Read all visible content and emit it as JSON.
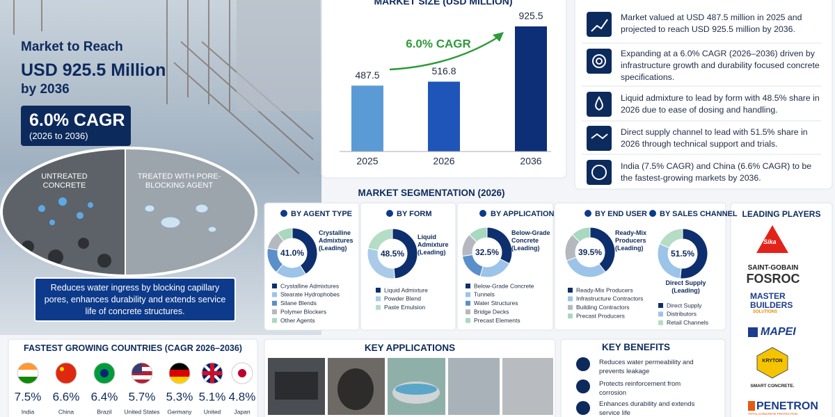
{
  "hero": {
    "heading": "Market to Reach",
    "value": "USD 925.5 Million",
    "year": "by 2036",
    "cagr": "6.0% CAGR",
    "cagr_period": "(2026 to 2036)",
    "untreated": "UNTREATED CONCRETE",
    "treated": "TREATED WITH PORE-BLOCKING AGENT",
    "caption": "Reduces water ingress by blocking capillary pores, enhances durability and extends service life of concrete structures."
  },
  "chart_data": [
    {
      "type": "bar",
      "title": "MARKET SIZE (USD MILLION)",
      "categories": [
        "2025",
        "2026",
        "2036"
      ],
      "values": [
        487.5,
        516.8,
        925.5
      ],
      "colors": [
        "#5b9bd5",
        "#1f55b8",
        "#0d2f78"
      ],
      "annotation": "6.0% CAGR"
    },
    {
      "type": "donut",
      "title": "BY AGENT TYPE",
      "categories": [
        "Crystalline Admixtures",
        "Stearate Hydrophobes",
        "Silane Blends",
        "Polymer Blockers",
        "Other Agents"
      ],
      "values": [
        41.0,
        20,
        17,
        12,
        10
      ],
      "value_labels": [
        "41.0%",
        null,
        null,
        null,
        null
      ],
      "colors": [
        "#0d2f6e",
        "#9cc3e8",
        "#5b8fc9",
        "#b5b8be",
        "#a8d8c0"
      ],
      "leading_label": "Crystalline Admixtures (Leading)"
    },
    {
      "type": "donut",
      "title": "BY FORM",
      "categories": [
        "Liquid Admixture",
        "Powder Blend",
        "Paste Emulsion"
      ],
      "values": [
        48.5,
        30,
        21.5
      ],
      "value_labels": [
        "48.5%",
        null,
        null
      ],
      "colors": [
        "#0d2f6e",
        "#a9cbe8",
        "#b5dcc5"
      ],
      "leading_label": "Liquid Admixture (Leading)"
    },
    {
      "type": "donut",
      "title": "BY APPLICATION",
      "categories": [
        "Below-Grade Concrete",
        "Tunnels",
        "Water Structures",
        "Bridge Decks",
        "Precast Elements"
      ],
      "values": [
        32.5,
        22,
        18,
        15,
        12.5
      ],
      "value_labels": [
        "32.5%",
        null,
        null,
        null,
        null
      ],
      "colors": [
        "#0d2f6e",
        "#9cc3e8",
        "#5b8fc9",
        "#b5b8be",
        "#a8d8c0"
      ],
      "leading_label": "Below-Grade Concrete (Leading)"
    },
    {
      "type": "donut",
      "title": "BY END USER",
      "categories": [
        "Ready-Mix Producers",
        "Infrastructure Contractors",
        "Building Contractors",
        "Precast Producers"
      ],
      "values": [
        39.5,
        30,
        18,
        12.5
      ],
      "value_labels": [
        "39.5%",
        null,
        null,
        null
      ],
      "colors": [
        "#0d2f6e",
        "#9cc3e8",
        "#b5b8be",
        "#a8d8c0"
      ],
      "leading_label": "Ready-Mix Producers (Leading)"
    },
    {
      "type": "donut",
      "title": "BY SALES CHANNEL",
      "categories": [
        "Direct Supply",
        "Distributors",
        "Retail Channels"
      ],
      "values": [
        51.5,
        30,
        18.5
      ],
      "value_labels": [
        "51.5%",
        null,
        null
      ],
      "colors": [
        "#0d2f6e",
        "#9cc3e8",
        "#b5dcc5"
      ],
      "leading_label": "Direct Supply (Leading)"
    }
  ],
  "highlights": [
    "Market valued at USD 487.5 million in 2025 and projected to reach USD 925.5 million by 2036.",
    "Expanding at a 6.0% CAGR (2026–2036) driven by infrastructure growth and durability focused concrete specifications.",
    "Liquid admixture to lead by form with 48.5% share in 2026 due to ease of dosing and handling.",
    "Direct supply channel to lead with 51.5% share in 2026 through technical support and trials.",
    "India (7.5% CAGR) and China (6.6% CAGR) to be the fastest-growing markets by 2036."
  ],
  "segmentation_title": "MARKET SEGMENTATION (2026)",
  "leading_players": {
    "title": "LEADING PLAYERS",
    "logos": [
      "Sika",
      "SAINT-GOBAIN",
      "FOSROC",
      "MASTER BUILDERS",
      "SOLUTIONS",
      "MAPEI",
      "KRYTON",
      "SMART CONCRETE.",
      "PENETRON",
      "TOTAL CONCRETE PROTECTION"
    ]
  },
  "countries": {
    "title": "FASTEST GROWING COUNTRIES (CAGR 2026–2036)",
    "items": [
      {
        "cagr": "7.5%",
        "name": "India"
      },
      {
        "cagr": "6.6%",
        "name": "China"
      },
      {
        "cagr": "6.4%",
        "name": "Brazil"
      },
      {
        "cagr": "5.7%",
        "name": "United States"
      },
      {
        "cagr": "5.3%",
        "name": "Germany"
      },
      {
        "cagr": "5.1%",
        "name": "United"
      },
      {
        "cagr": "4.8%",
        "name": "Japan"
      }
    ]
  },
  "key_applications": {
    "title": "KEY APPLICATIONS"
  },
  "key_benefits": {
    "title": "KEY BENEFITS",
    "items": [
      "Reduces water permeability and prevents leakage",
      "Protects reinforcement from corrosion",
      "Enhances durability and extends service life"
    ]
  }
}
